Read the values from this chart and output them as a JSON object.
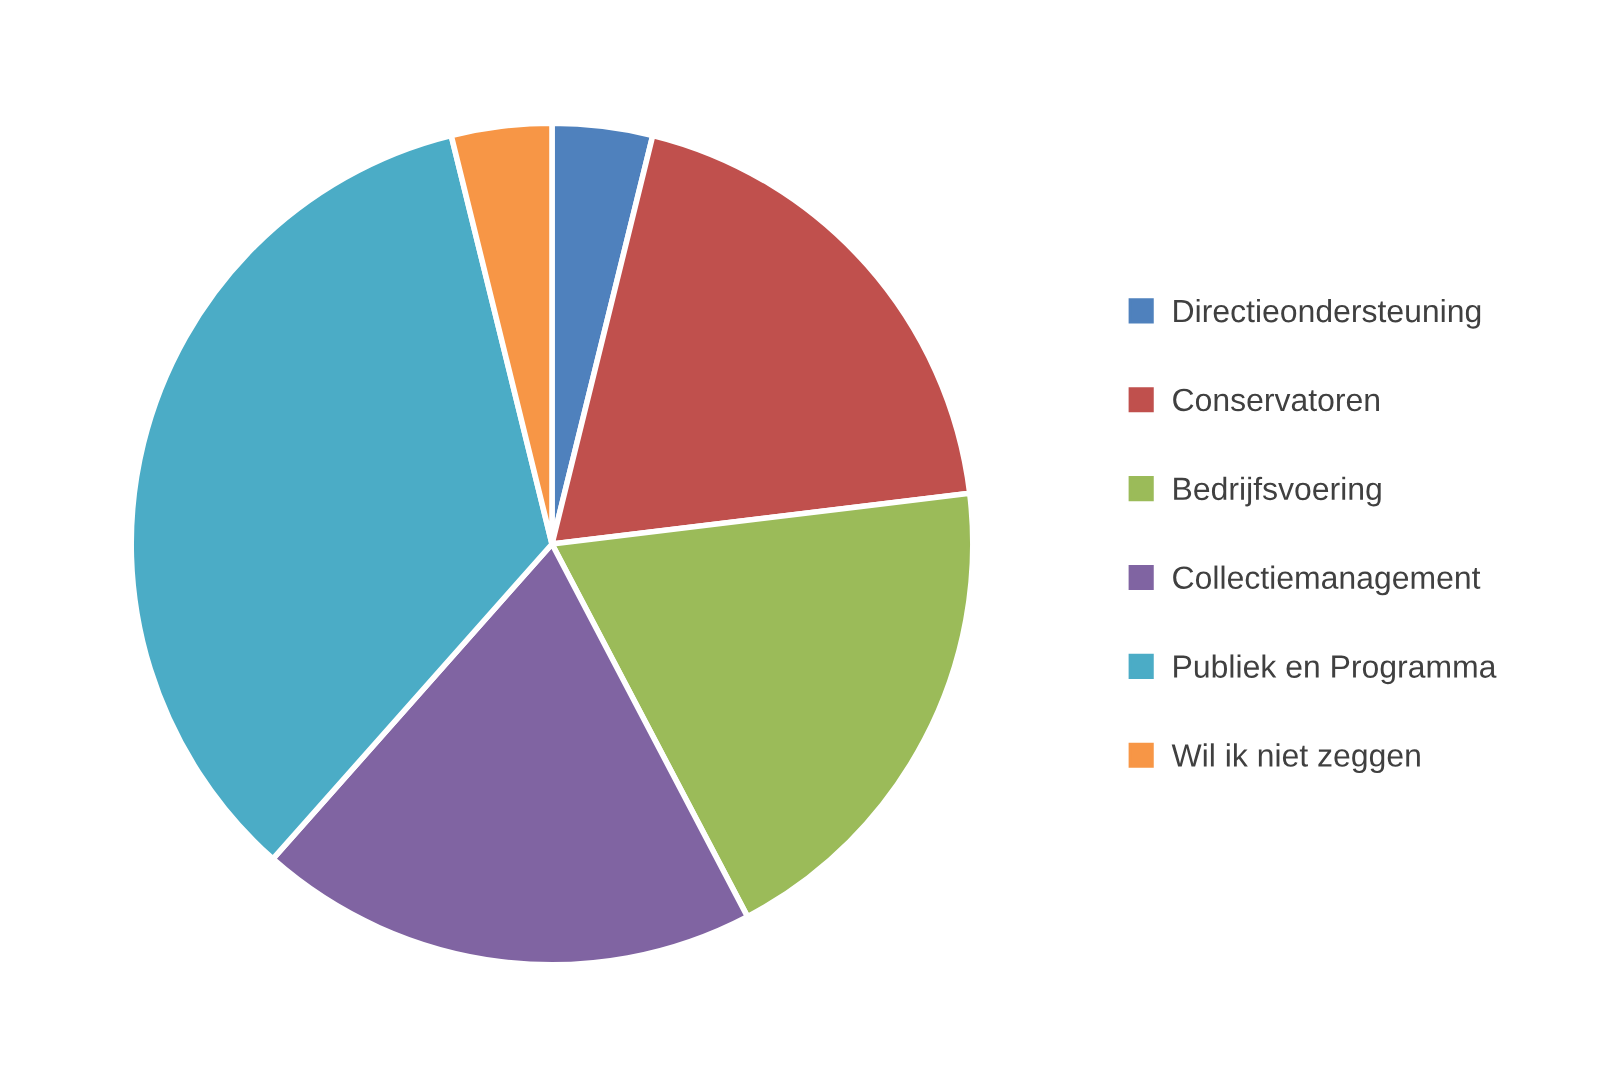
{
  "chart_data": {
    "type": "pie",
    "categories": [
      "Directieondersteuning",
      "Conservatoren",
      "Bedrijfsvoering",
      "Collectiemanagement",
      "Publiek en Programma",
      "Wil ik niet zeggen"
    ],
    "values": [
      3.85,
      19.23,
      19.23,
      19.23,
      34.61,
      3.85
    ],
    "colors": [
      "#4f81bd",
      "#c0504d",
      "#9bbb59",
      "#8064a2",
      "#4bacc6",
      "#f79646"
    ],
    "legend": "right"
  }
}
